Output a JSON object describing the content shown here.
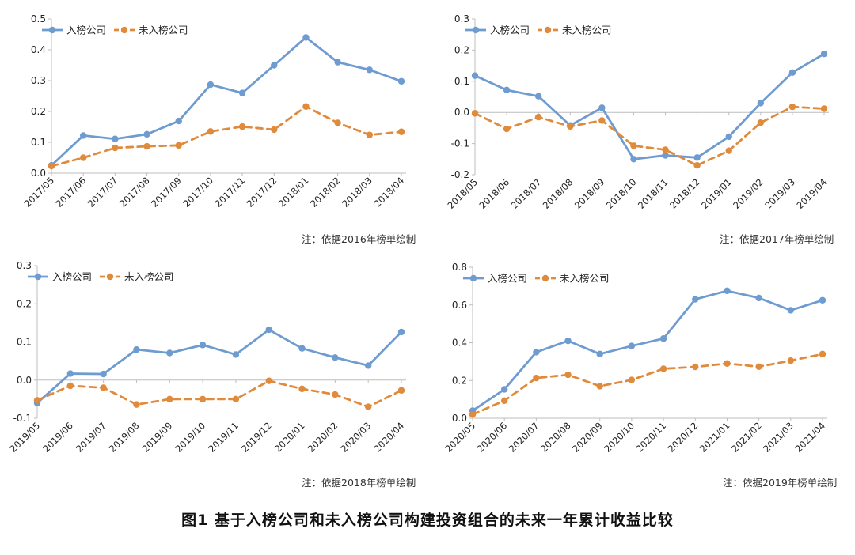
{
  "figure_caption": "图1  基于入榜公司和未入榜公司构建投资组合的未来一年累计收益比较",
  "colors": {
    "listed": "#6e9bd0",
    "unlisted": "#e08a3c",
    "axis": "#bdbdbd"
  },
  "chart_data": [
    {
      "type": "line",
      "note": "注：依据2016年榜单绘制",
      "categories": [
        "2017/05",
        "2017/06",
        "2017/07",
        "2017/08",
        "2017/09",
        "2017/10",
        "2017/11",
        "2017/12",
        "2018/01",
        "2018/02",
        "2018/03",
        "2018/04"
      ],
      "ylim": [
        0,
        0.5
      ],
      "yticks": [
        "0.0",
        "0.1",
        "0.2",
        "0.3",
        "0.4",
        "0.5"
      ],
      "legend_position": "top-left",
      "series": [
        {
          "name": "入榜公司",
          "style": "solid",
          "values": [
            0.025,
            0.122,
            0.111,
            0.126,
            0.169,
            0.287,
            0.26,
            0.35,
            0.44,
            0.36,
            0.335,
            0.298
          ]
        },
        {
          "name": "未入榜公司",
          "style": "dashed",
          "values": [
            0.023,
            0.05,
            0.082,
            0.087,
            0.09,
            0.135,
            0.151,
            0.141,
            0.216,
            0.163,
            0.124,
            0.134
          ]
        }
      ]
    },
    {
      "type": "line",
      "note": "注：依据2017年榜单绘制",
      "categories": [
        "2018/05",
        "2018/06",
        "2018/07",
        "2018/08",
        "2018/09",
        "2018/10",
        "2018/11",
        "2018/12",
        "2019/01",
        "2019/02",
        "2019/03",
        "2019/04"
      ],
      "ylim": [
        -0.2,
        0.3
      ],
      "yticks": [
        "-0.2",
        "-0.1",
        "0.0",
        "0.1",
        "0.2",
        "0.3"
      ],
      "legend_position": "top-left",
      "series": [
        {
          "name": "入榜公司",
          "style": "solid",
          "values": [
            0.118,
            0.072,
            0.052,
            -0.042,
            0.015,
            -0.15,
            -0.138,
            -0.145,
            -0.078,
            0.03,
            0.128,
            0.188
          ]
        },
        {
          "name": "未入榜公司",
          "style": "dashed",
          "values": [
            -0.003,
            -0.053,
            -0.015,
            -0.045,
            -0.026,
            -0.107,
            -0.12,
            -0.17,
            -0.123,
            -0.033,
            0.018,
            0.012
          ]
        }
      ]
    },
    {
      "type": "line",
      "note": "注：依据2018年榜单绘制",
      "categories": [
        "2019/05",
        "2019/06",
        "2019/07",
        "2019/08",
        "2019/09",
        "2019/10",
        "2019/11",
        "2019/12",
        "2020/01",
        "2020/02",
        "2020/03",
        "2020/04"
      ],
      "ylim": [
        -0.1,
        0.3
      ],
      "yticks": [
        "-0.1",
        "0.0",
        "0.1",
        "0.2",
        "0.3"
      ],
      "legend_position": "top-left",
      "series": [
        {
          "name": "入榜公司",
          "style": "solid",
          "values": [
            -0.06,
            0.017,
            0.016,
            0.08,
            0.071,
            0.092,
            0.067,
            0.132,
            0.083,
            0.059,
            0.038,
            0.126
          ]
        },
        {
          "name": "未入榜公司",
          "style": "dashed",
          "values": [
            -0.053,
            -0.015,
            -0.02,
            -0.064,
            -0.05,
            -0.05,
            -0.05,
            -0.002,
            -0.023,
            -0.038,
            -0.07,
            -0.027
          ]
        }
      ]
    },
    {
      "type": "line",
      "note": "注：依据2019年榜单绘制",
      "categories": [
        "2020/05",
        "2020/06",
        "2020/07",
        "2020/08",
        "2020/09",
        "2020/10",
        "2020/11",
        "2020/12",
        "2021/01",
        "2021/02",
        "2021/03",
        "2021/04"
      ],
      "ylim": [
        0,
        0.8
      ],
      "yticks": [
        "0.0",
        "0.2",
        "0.4",
        "0.6",
        "0.8"
      ],
      "legend_position": "top-left",
      "series": [
        {
          "name": "入榜公司",
          "style": "solid",
          "values": [
            0.04,
            0.153,
            0.35,
            0.41,
            0.34,
            0.383,
            0.422,
            0.63,
            0.675,
            0.637,
            0.572,
            0.625
          ]
        },
        {
          "name": "未入榜公司",
          "style": "dashed",
          "values": [
            0.02,
            0.093,
            0.213,
            0.23,
            0.17,
            0.203,
            0.262,
            0.272,
            0.29,
            0.273,
            0.305,
            0.34
          ]
        }
      ]
    }
  ]
}
